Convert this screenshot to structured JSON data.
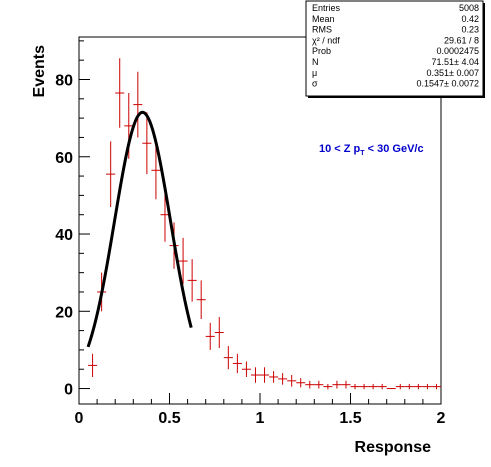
{
  "chart_data": {
    "type": "scatter",
    "xlabel": "Response",
    "ylabel": "Events",
    "xlim": [
      0,
      2
    ],
    "ylim": [
      -4,
      91
    ],
    "x_ticks": [
      {
        "value": 0,
        "label": "0"
      },
      {
        "value": 0.5,
        "label": "0.5"
      },
      {
        "value": 1,
        "label": "1"
      },
      {
        "value": 1.5,
        "label": "1.5"
      },
      {
        "value": 2,
        "label": "2"
      }
    ],
    "y_ticks": [
      {
        "value": 0,
        "label": "0"
      },
      {
        "value": 20,
        "label": "20"
      },
      {
        "value": 40,
        "label": "40"
      },
      {
        "value": 60,
        "label": "60"
      },
      {
        "value": 80,
        "label": "80"
      }
    ],
    "histogram": {
      "color": "#cc0000",
      "bin_halfwidth": 0.025,
      "points": [
        {
          "x": 0.075,
          "y": 6,
          "err": 3
        },
        {
          "x": 0.125,
          "y": 25,
          "err": 5
        },
        {
          "x": 0.175,
          "y": 55.5,
          "err": 8.5
        },
        {
          "x": 0.225,
          "y": 76.5,
          "err": 9
        },
        {
          "x": 0.275,
          "y": 68,
          "err": 8.5
        },
        {
          "x": 0.325,
          "y": 73.5,
          "err": 8.5
        },
        {
          "x": 0.375,
          "y": 63.5,
          "err": 8
        },
        {
          "x": 0.425,
          "y": 56.5,
          "err": 7.5
        },
        {
          "x": 0.475,
          "y": 45,
          "err": 7
        },
        {
          "x": 0.525,
          "y": 37,
          "err": 6
        },
        {
          "x": 0.575,
          "y": 33,
          "err": 6
        },
        {
          "x": 0.625,
          "y": 28,
          "err": 5.5
        },
        {
          "x": 0.675,
          "y": 23,
          "err": 5
        },
        {
          "x": 0.725,
          "y": 13.5,
          "err": 3.5
        },
        {
          "x": 0.775,
          "y": 14.5,
          "err": 4
        },
        {
          "x": 0.825,
          "y": 8,
          "err": 3
        },
        {
          "x": 0.875,
          "y": 6.5,
          "err": 2.5
        },
        {
          "x": 0.925,
          "y": 5,
          "err": 2
        },
        {
          "x": 0.975,
          "y": 3.5,
          "err": 2
        },
        {
          "x": 1.025,
          "y": 3.5,
          "err": 2
        },
        {
          "x": 1.075,
          "y": 3,
          "err": 1.5
        },
        {
          "x": 1.125,
          "y": 2.5,
          "err": 1.5
        },
        {
          "x": 1.175,
          "y": 2,
          "err": 1.5
        },
        {
          "x": 1.225,
          "y": 1.5,
          "err": 1.2
        },
        {
          "x": 1.275,
          "y": 1,
          "err": 1
        },
        {
          "x": 1.325,
          "y": 1,
          "err": 1
        },
        {
          "x": 1.375,
          "y": 0.5,
          "err": 0.7
        },
        {
          "x": 1.425,
          "y": 1,
          "err": 1
        },
        {
          "x": 1.475,
          "y": 1,
          "err": 1
        },
        {
          "x": 1.525,
          "y": 0.5,
          "err": 0.7
        },
        {
          "x": 1.575,
          "y": 0.5,
          "err": 0.7
        },
        {
          "x": 1.625,
          "y": 0.5,
          "err": 0.7
        },
        {
          "x": 1.675,
          "y": 0.5,
          "err": 0.7
        },
        {
          "x": 1.725,
          "y": 0,
          "err": 0
        },
        {
          "x": 1.775,
          "y": 0.5,
          "err": 0.7
        },
        {
          "x": 1.825,
          "y": 0.5,
          "err": 0.7
        },
        {
          "x": 1.875,
          "y": 0.5,
          "err": 0.7
        },
        {
          "x": 1.925,
          "y": 0.5,
          "err": 0.7
        },
        {
          "x": 1.975,
          "y": 0.5,
          "err": 0.7
        }
      ]
    },
    "fit": {
      "type": "gaussian",
      "color": "#000000",
      "N": 71.51,
      "mu": 0.351,
      "sigma": 0.1547,
      "x_range": [
        0.05,
        0.62
      ]
    },
    "annotation": {
      "text": "10 < Z p",
      "subscript": "T",
      "text_after": " < 30 GeV/c",
      "color": "#0000cc"
    },
    "stats_box": {
      "rows": [
        {
          "label": "Entries",
          "value": "5008"
        },
        {
          "label": "Mean",
          "value": "0.42"
        },
        {
          "label": "RMS",
          "value": "0.23"
        },
        {
          "label": "χ² / ndf",
          "value": "29.61 / 8"
        },
        {
          "label": "Prob",
          "value": "0.0002475"
        },
        {
          "label": "N",
          "value": "71.51± 4.04"
        },
        {
          "label": "μ",
          "value": "0.351± 0.007"
        },
        {
          "label": "σ",
          "value": "0.1547± 0.0072"
        }
      ]
    }
  }
}
